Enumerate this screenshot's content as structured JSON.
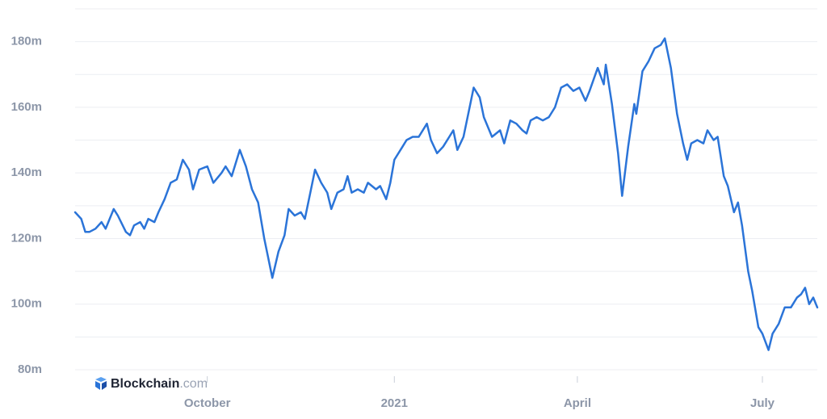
{
  "chart_data": {
    "type": "line",
    "x": [
      -65,
      -62,
      -60,
      -58,
      -55,
      -52,
      -50,
      -46,
      -44,
      -40,
      -38,
      -36,
      -33,
      -31,
      -29,
      -26,
      -24,
      -21,
      -18,
      -15,
      -12,
      -9,
      -7,
      -4,
      0,
      3,
      7,
      9,
      12,
      16,
      19,
      22,
      25,
      28,
      30,
      32,
      35,
      38,
      40,
      43,
      46,
      48,
      51,
      53,
      56,
      59,
      61,
      64,
      67,
      69,
      71,
      74,
      77,
      79,
      83,
      85,
      88,
      90,
      92,
      96,
      98,
      101,
      104,
      108,
      110,
      113,
      116,
      119,
      121,
      123,
      126,
      129,
      131,
      134,
      136,
      140,
      144,
      146,
      149,
      152,
      155,
      157,
      159,
      162,
      165,
      168,
      171,
      174,
      177,
      180,
      183,
      186,
      188,
      192,
      195,
      196,
      199,
      202,
      204,
      207,
      210,
      211,
      214,
      217,
      220,
      223,
      225,
      228,
      231,
      234,
      236,
      238,
      241,
      244,
      246,
      249,
      251,
      254,
      256,
      259,
      261,
      263,
      266,
      268,
      271,
      273,
      276,
      278,
      281,
      284,
      287,
      290,
      292,
      294,
      296,
      298,
      300
    ],
    "series": [
      {
        "color": "#2b74d8",
        "values": [
          128,
          126,
          122,
          122,
          123,
          125,
          123,
          129,
          127,
          122,
          121,
          124,
          125,
          123,
          126,
          125,
          128,
          132,
          137,
          138,
          144,
          141,
          135,
          141,
          142,
          137,
          140,
          142,
          139,
          147,
          142,
          135,
          131,
          120,
          114,
          108,
          116,
          121,
          129,
          127,
          128,
          126,
          135,
          141,
          137,
          134,
          129,
          134,
          135,
          139,
          134,
          135,
          134,
          137,
          135,
          136,
          132,
          137,
          144,
          148,
          150,
          151,
          151,
          155,
          150,
          146,
          148,
          151,
          153,
          147,
          151,
          160,
          166,
          163,
          157,
          151,
          153,
          149,
          156,
          155,
          153,
          152,
          156,
          157,
          156,
          157,
          160,
          166,
          167,
          165,
          166,
          162,
          165,
          172,
          167,
          173,
          161,
          146,
          133,
          148,
          161,
          158,
          171,
          174,
          178,
          179,
          181,
          172,
          158,
          149,
          144,
          149,
          150,
          149,
          153,
          150,
          151,
          139,
          136,
          128,
          131,
          124,
          110,
          104,
          93,
          91,
          86,
          91,
          94,
          99,
          99,
          102,
          103,
          105,
          100,
          102,
          99
        ]
      }
    ],
    "xlim": [
      -65,
      300
    ],
    "xticks": [
      {
        "value": 0,
        "label": "October"
      },
      {
        "value": 92,
        "label": "2021"
      },
      {
        "value": 182,
        "label": "April"
      },
      {
        "value": 273,
        "label": "July"
      }
    ],
    "ylim": [
      80,
      190
    ],
    "yticks": [
      {
        "value": 80,
        "label": "80m"
      },
      {
        "value": 100,
        "label": "100m"
      },
      {
        "value": 120,
        "label": "120m"
      },
      {
        "value": 140,
        "label": "140m"
      },
      {
        "value": 160,
        "label": "160m"
      },
      {
        "value": 180,
        "label": "180m"
      }
    ],
    "minor_grid": [
      90,
      110,
      130,
      150,
      170,
      190
    ],
    "grid": true,
    "watermark": {
      "brand": "Blockchain",
      "suffix": ".com"
    }
  }
}
